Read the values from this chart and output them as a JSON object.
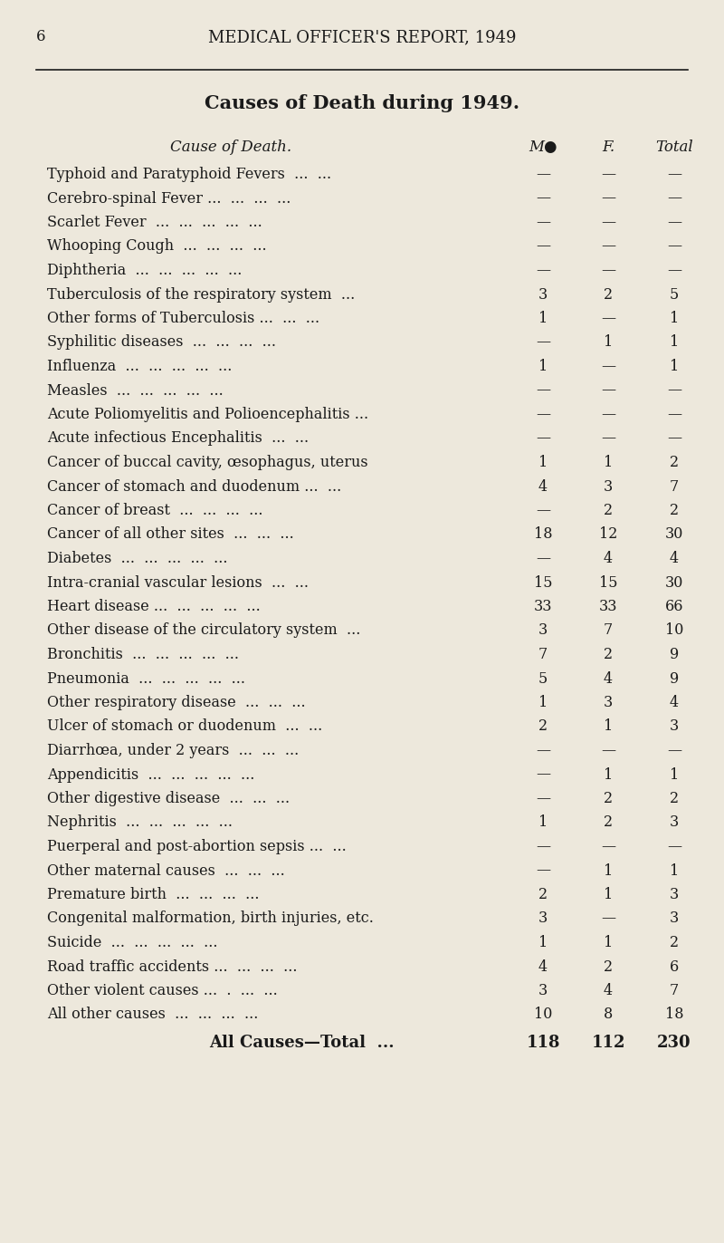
{
  "page_number": "6",
  "header": "MEDICAL OFFICER'S REPORT, 1949",
  "title": "Causes of Death during 1949.",
  "col_headers": [
    "Cause of Death.",
    "M●",
    "F.",
    "Total"
  ],
  "rows": [
    [
      "Typhoid and Paratyphoid Fevers  ...  ...  ",
      "—",
      "—",
      "—"
    ],
    [
      "Cerebro-spinal Fever ...  ...  ...  ...  ",
      "—",
      "—",
      "—"
    ],
    [
      "Scarlet Fever  ...  ...  ...  ...  ...  ",
      "—",
      "—",
      "—"
    ],
    [
      "Whooping Cough  ...  ...  ...  ...  ",
      "—",
      "—",
      "—"
    ],
    [
      "Diphtheria  ...  ...  ...  ...  ...  ",
      "—",
      "—",
      "—"
    ],
    [
      "Tuberculosis of the respiratory system  ...  ",
      "3",
      "2",
      "5"
    ],
    [
      "Other forms of Tuberculosis ...  ...  ...  ",
      "1",
      "—",
      "1"
    ],
    [
      "Syphilitic diseases  ...  ...  ...  ...  ",
      "—",
      "1",
      "1"
    ],
    [
      "Influenza  ...  ...  ...  ...  ...  ",
      "1",
      "—",
      "1"
    ],
    [
      "Measles  ...  ...  ...  ...  ...  ",
      "—",
      "—",
      "—"
    ],
    [
      "Acute Poliomyelitis and Polioencephalitis ...  ",
      "—",
      "—",
      "—"
    ],
    [
      "Acute infectious Encephalitis  ...  ...  ",
      "—",
      "—",
      "—"
    ],
    [
      "Cancer of buccal cavity, œsophagus, uterus",
      "1",
      "1",
      "2"
    ],
    [
      "Cancer of stomach and duodenum ...  ...  ",
      "4",
      "3",
      "7"
    ],
    [
      "Cancer of breast  ...  ...  ...  ...  ",
      "—",
      "2",
      "2"
    ],
    [
      "Cancer of all other sites  ...  ...  ...  ",
      "18",
      "12",
      "30"
    ],
    [
      "Diabetes  ...  ...  ...  ...  ...  ",
      "—",
      "4",
      "4"
    ],
    [
      "Intra-cranial vascular lesions  ...  ...  ",
      "15",
      "15",
      "30"
    ],
    [
      "Heart disease ...  ...  ...  ...  ...  ",
      "33",
      "33",
      "66"
    ],
    [
      "Other disease of the circulatory system  ...  ",
      "3",
      "7",
      "10"
    ],
    [
      "Bronchitis  ...  ...  ...  ...  ...  ",
      "7",
      "2",
      "9"
    ],
    [
      "Pneumonia  ...  ...  ...  ...  ...  ",
      "5",
      "4",
      "9"
    ],
    [
      "Other respiratory disease  ...  ...  ...  ",
      "1",
      "3",
      "4"
    ],
    [
      "Ulcer of stomach or duodenum  ...  ...  ",
      "2",
      "1",
      "3"
    ],
    [
      "Diarrhœa, under 2 years  ...  ...  ...  ",
      "—",
      "—",
      "—"
    ],
    [
      "Appendicitis  ...  ...  ...  ...  ...  ",
      "—",
      "1",
      "1"
    ],
    [
      "Other digestive disease  ...  ...  ...  ",
      "—",
      "2",
      "2"
    ],
    [
      "Nephritis  ...  ...  ...  ...  ...  ",
      "1",
      "2",
      "3"
    ],
    [
      "Puerperal and post-abortion sepsis ...  ...  ",
      "—",
      "—",
      "—"
    ],
    [
      "Other maternal causes  ...  ...  ...  ",
      "—",
      "1",
      "1"
    ],
    [
      "Premature birth  ...  ...  ...  ...  ",
      "2",
      "1",
      "3"
    ],
    [
      "Congenital malformation, birth injuries, etc.",
      "3",
      "—",
      "3"
    ],
    [
      "Suicide  ...  ...  ...  ...  ...  ",
      "1",
      "1",
      "2"
    ],
    [
      "Road traffic accidents ...  ...  ...  ...  ",
      "4",
      "2",
      "6"
    ],
    [
      "Other violent causes ...  .  ...  ...  ",
      "3",
      "4",
      "7"
    ],
    [
      "All other causes  ...  ...  ...  ...  ",
      "10",
      "8",
      "18"
    ]
  ],
  "total_row": [
    "All Causes—Total  ...  ",
    "118",
    "112",
    "230"
  ],
  "bg_color": "#EDE8DC",
  "text_color": "#1a1a1a",
  "header_font_size": 13,
  "title_font_size": 15,
  "col_header_font_size": 12,
  "row_font_size": 11.5,
  "total_font_size": 13
}
